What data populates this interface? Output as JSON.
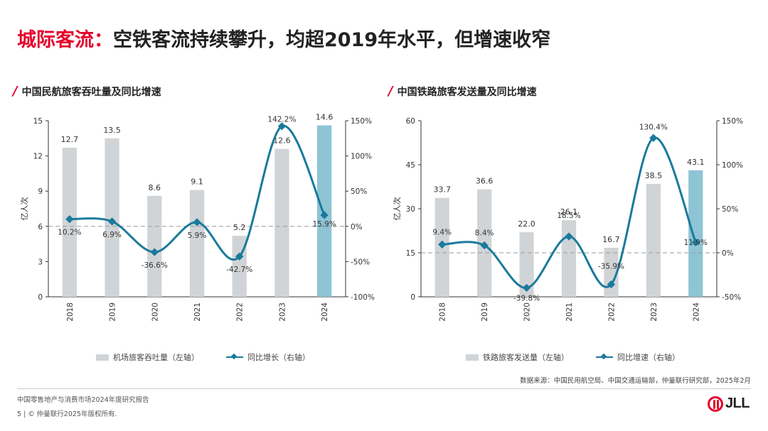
{
  "page": {
    "title_highlight": "城际客流：",
    "title_rest": "空铁客流持续攀升，均超2019年水平，但增速收窄",
    "source": "数据来源：中国民用航空局、中国交通运输部，仲量联行研究部，2025年2月",
    "footer_report": "中国零售地产与消费市场2024年度研究报告",
    "footer_copyright": "5 | © 仲量联行2025年版权所有.",
    "logo_text": "JLL"
  },
  "colors": {
    "bar": "#d1d4d6",
    "bar_highlight": "#8ec4d4",
    "line": "#1a7a9c",
    "accent": "#e4002b"
  },
  "chart_data": [
    {
      "type": "bar",
      "title": "中国民航旅客吞吐量及同比增速",
      "ylabel": "亿人次",
      "categories": [
        "2018",
        "2019",
        "2020",
        "2021",
        "2022",
        "2023",
        "2024"
      ],
      "ylim": [
        0,
        15
      ],
      "yticks": [
        "0",
        "3",
        "6",
        "9",
        "12",
        "15"
      ],
      "y2lim": [
        -100,
        150
      ],
      "y2ticks": [
        "-100%",
        "-50%",
        "0%",
        "50%",
        "100%",
        "150%"
      ],
      "reference_line_y": 6,
      "series": [
        {
          "name": "机场旅客吞吐量（左轴）",
          "kind": "bar",
          "axis": "left",
          "values": [
            12.7,
            13.5,
            8.6,
            9.1,
            5.2,
            12.6,
            14.6
          ],
          "labels": [
            "12.7",
            "13.5",
            "8.6",
            "9.1",
            "5.2",
            "12.6",
            "14.6"
          ]
        },
        {
          "name": "同比增长（右轴）",
          "kind": "line",
          "axis": "right",
          "values": [
            10.2,
            6.9,
            -36.6,
            5.9,
            -42.7,
            142.2,
            15.9
          ],
          "labels": [
            "10.2%",
            "6.9%",
            "-36.6%",
            "5.9%",
            "-42.7%",
            "142.2%",
            "15.9%"
          ]
        }
      ],
      "legend": [
        "机场旅客吞吐量（左轴）",
        "同比增长（右轴）"
      ]
    },
    {
      "type": "bar",
      "title": "中国铁路旅客发送量及同比增速",
      "ylabel": "亿人次",
      "categories": [
        "2018",
        "2019",
        "2020",
        "2021",
        "2022",
        "2023",
        "2024"
      ],
      "ylim": [
        0,
        60
      ],
      "yticks": [
        "0",
        "15",
        "30",
        "45",
        "60"
      ],
      "y2lim": [
        -50,
        150
      ],
      "y2ticks": [
        "-50%",
        "0%",
        "50%",
        "100%",
        "150%"
      ],
      "reference_line_y": 15,
      "series": [
        {
          "name": "铁路旅客发送量（左轴）",
          "kind": "bar",
          "axis": "left",
          "values": [
            33.7,
            36.6,
            22.0,
            26.1,
            16.7,
            38.5,
            43.1
          ],
          "labels": [
            "33.7",
            "36.6",
            "22.0",
            "26.1",
            "16.7",
            "38.5",
            "43.1"
          ]
        },
        {
          "name": "同比增速（右轴）",
          "kind": "line",
          "axis": "right",
          "values": [
            9.4,
            8.4,
            -39.8,
            18.5,
            -35.9,
            130.4,
            11.9
          ],
          "labels": [
            "9.4%",
            "8.4%",
            "-39.8%",
            "18.5%",
            "-35.9%",
            "130.4%",
            "11.9%"
          ]
        }
      ],
      "legend": [
        "铁路旅客发送量（左轴）",
        "同比增速（右轴）"
      ]
    }
  ]
}
